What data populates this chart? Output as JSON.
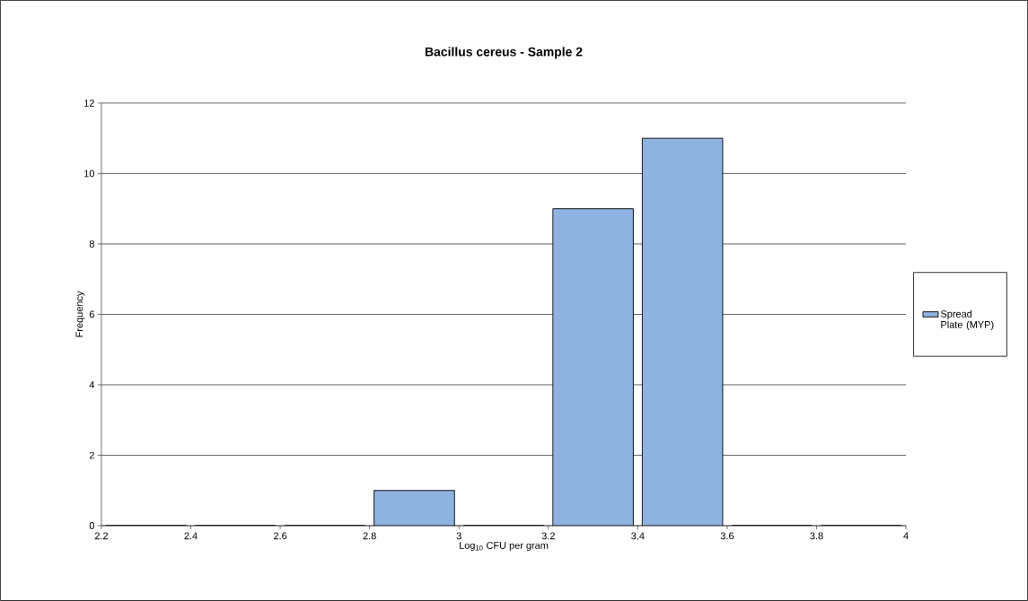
{
  "chart_data": {
    "type": "histogram",
    "title": "Bacillus cereus - Sample 2",
    "xlabel": "Log$_{10}$ CFU per gram",
    "ylabel": "Frequency",
    "bins": [
      2.2,
      2.4,
      2.6,
      2.8,
      3.0,
      3.2,
      3.4,
      3.6,
      3.8,
      4.0
    ],
    "series": [
      {
        "name": "Spread Plate (MYP)",
        "color": "#8eb3e1",
        "values": [
          0,
          0,
          0,
          1,
          0,
          9,
          11,
          0,
          0
        ]
      }
    ],
    "xlim": [
      2.2,
      4
    ],
    "xticks": [
      2.2,
      2.4,
      2.6,
      2.8,
      3,
      3.2,
      3.4,
      3.6,
      3.8,
      4
    ],
    "ylim": [
      0,
      12
    ],
    "yticks": [
      0,
      2,
      4,
      6,
      8,
      10,
      12
    ],
    "grid": "y",
    "legend": "right"
  }
}
